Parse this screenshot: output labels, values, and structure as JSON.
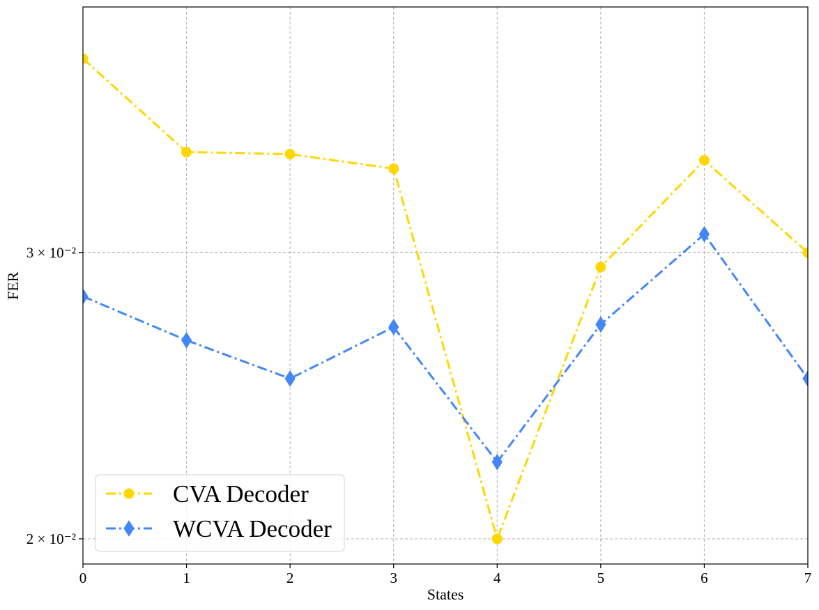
{
  "chart_data": {
    "type": "line",
    "xlabel": "States",
    "ylabel": "FER",
    "x": [
      0,
      1,
      2,
      3,
      4,
      5,
      6,
      7
    ],
    "xlim": [
      0,
      7
    ],
    "ylim": [
      0.0193,
      0.0425
    ],
    "yscale": "log",
    "x_ticks": [
      0,
      1,
      2,
      3,
      4,
      5,
      6,
      7
    ],
    "y_ticks": [
      {
        "value": 0.02,
        "label": "2 × 10⁻²"
      },
      {
        "value": 0.03,
        "label": "3 × 10⁻²"
      }
    ],
    "grid": true,
    "legend_position": "lower-left",
    "series": [
      {
        "name": "CVA Decoder",
        "color": "#FFD700",
        "marker": "circle",
        "linestyle": "dashdot",
        "values": [
          0.0395,
          0.0346,
          0.0345,
          0.0338,
          0.02,
          0.0294,
          0.0342,
          0.03
        ]
      },
      {
        "name": "WCVA Decoder",
        "color": "#4287f5",
        "marker": "diamond",
        "linestyle": "dashdot",
        "values": [
          0.0282,
          0.0265,
          0.0251,
          0.027,
          0.0223,
          0.0271,
          0.0308,
          0.0251
        ]
      }
    ]
  }
}
